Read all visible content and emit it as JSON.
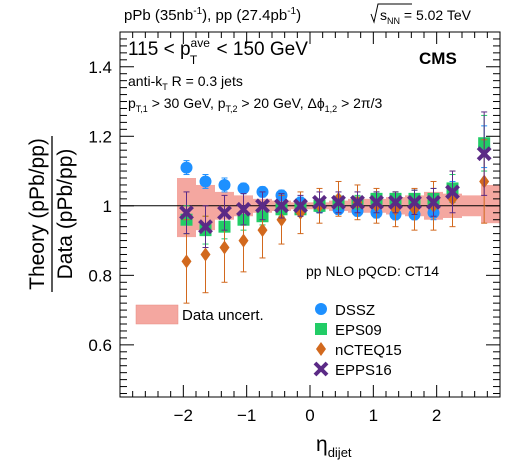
{
  "header": {
    "lumi_pPb": "pPb (35",
    "lumi_pPb_unit": "nb",
    "lumi_pPb_sup": "-1",
    "lumi_pp": "), pp (27.4",
    "lumi_pp_unit": "pb",
    "lumi_pp_sup": "-1",
    "lumi_close": ")",
    "energy_pre": "s",
    "energy_sub": "NN",
    "energy_value": " = 5.02 TeV"
  },
  "labels": {
    "cms": "CMS",
    "range_low": "115 < p",
    "range_sup": "ave",
    "range_sub": "T",
    "range_high": " < 150 GeV",
    "algo_pre": "anti-k",
    "algo_sub": "T",
    "algo_post": " R = 0.3 jets",
    "cuts_p1": "p",
    "cuts_p1_sub": "T,1",
    "cuts_p1_val": " > 30 GeV, p",
    "cuts_p2_sub": "T,2",
    "cuts_p2_val": " > 20 GeV, Δϕ",
    "cuts_phi_sub": "1,2",
    "cuts_phi_val": " > 2π/3",
    "theory_note": "pp NLO pQCD: CT14",
    "data_uncert": "Data uncert."
  },
  "chart_data": {
    "type": "scatter",
    "xlabel": "η",
    "xlabel_sub": "dijet",
    "ylabel_top": "Theory (pPb/pp)",
    "ylabel_bottom": "Data (pPb/pp)",
    "xlim": [
      -3.0,
      3.0
    ],
    "ylim": [
      0.45,
      1.5
    ],
    "x_ticks": [
      -2,
      -1,
      0,
      1,
      2
    ],
    "x_tick_labels": [
      "−2",
      "−1",
      "0",
      "1",
      "2"
    ],
    "y_ticks": [
      0.6,
      0.8,
      1.0,
      1.2,
      1.4
    ],
    "y_tick_labels": [
      "0.6",
      "0.8",
      "1",
      "1.2",
      "1.4"
    ],
    "reference_line": 1.0,
    "band_color": "#f4a7a0",
    "data_uncertainty_band": [
      {
        "x0": -2.1,
        "x1": -1.8,
        "lo": 0.91,
        "hi": 1.08
      },
      {
        "x0": -1.8,
        "x1": -1.5,
        "lo": 0.93,
        "hi": 1.06
      },
      {
        "x0": -1.5,
        "x1": -1.2,
        "lo": 0.96,
        "hi": 1.04
      },
      {
        "x0": -1.2,
        "x1": -0.9,
        "lo": 0.97,
        "hi": 1.03
      },
      {
        "x0": -0.9,
        "x1": -0.6,
        "lo": 0.98,
        "hi": 1.02
      },
      {
        "x0": -0.6,
        "x1": -0.3,
        "lo": 0.985,
        "hi": 1.015
      },
      {
        "x0": -0.3,
        "x1": 0.0,
        "lo": 0.99,
        "hi": 1.01
      },
      {
        "x0": 0.0,
        "x1": 0.3,
        "lo": 0.99,
        "hi": 1.01
      },
      {
        "x0": 0.3,
        "x1": 0.6,
        "lo": 0.985,
        "hi": 1.015
      },
      {
        "x0": 0.6,
        "x1": 0.9,
        "lo": 0.98,
        "hi": 1.02
      },
      {
        "x0": 0.9,
        "x1": 1.2,
        "lo": 0.98,
        "hi": 1.02
      },
      {
        "x0": 1.2,
        "x1": 1.5,
        "lo": 0.975,
        "hi": 1.025
      },
      {
        "x0": 1.5,
        "x1": 1.8,
        "lo": 0.97,
        "hi": 1.03
      },
      {
        "x0": 1.8,
        "x1": 2.1,
        "lo": 0.96,
        "hi": 1.04
      },
      {
        "x0": 2.1,
        "x1": 2.4,
        "lo": 0.965,
        "hi": 1.035
      },
      {
        "x0": 2.4,
        "x1": 2.7,
        "lo": 0.97,
        "hi": 1.03
      },
      {
        "x0": 2.7,
        "x1": 3.0,
        "lo": 0.95,
        "hi": 1.06
      }
    ],
    "series": [
      {
        "name": "DSSZ",
        "marker": "circle",
        "color": "#1e90ff",
        "x": [
          -1.95,
          -1.65,
          -1.35,
          -1.05,
          -0.75,
          -0.45,
          -0.15,
          0.15,
          0.45,
          0.75,
          1.05,
          1.35,
          1.65,
          1.95,
          2.25,
          2.75
        ],
        "y": [
          1.11,
          1.07,
          1.06,
          1.05,
          1.04,
          1.03,
          1.01,
          0.995,
          0.99,
          0.985,
          0.98,
          0.975,
          0.975,
          0.98,
          1.04,
          1.17
        ],
        "err": [
          0.02,
          0.02,
          0.02,
          0.015,
          0.015,
          0.015,
          0.015,
          0.015,
          0.015,
          0.015,
          0.015,
          0.015,
          0.015,
          0.02,
          0.03,
          0.06
        ]
      },
      {
        "name": "EPS09",
        "marker": "square",
        "color": "#22cc66",
        "x": [
          -1.95,
          -1.65,
          -1.35,
          -1.05,
          -0.75,
          -0.45,
          -0.15,
          0.15,
          0.45,
          0.75,
          1.05,
          1.35,
          1.65,
          1.95,
          2.25,
          2.75
        ],
        "y": [
          0.96,
          0.93,
          0.94,
          0.96,
          0.97,
          0.99,
          0.99,
          1.0,
          1.01,
          1.01,
          1.02,
          1.02,
          1.02,
          1.02,
          1.05,
          1.18
        ],
        "err": [
          0.04,
          0.04,
          0.035,
          0.03,
          0.025,
          0.02,
          0.02,
          0.02,
          0.02,
          0.02,
          0.02,
          0.02,
          0.025,
          0.03,
          0.04,
          0.08
        ]
      },
      {
        "name": "nCTEQ15",
        "marker": "diamond",
        "color": "#d2691e",
        "x": [
          -1.95,
          -1.65,
          -1.35,
          -1.05,
          -0.75,
          -0.45,
          -0.15,
          0.15,
          0.45,
          0.75,
          1.05,
          1.35,
          1.65,
          1.95,
          2.25,
          2.75
        ],
        "y": [
          0.84,
          0.86,
          0.88,
          0.9,
          0.93,
          0.96,
          0.98,
          1.0,
          1.02,
          1.01,
          1.0,
          0.99,
          0.99,
          1.0,
          1.02,
          1.07
        ],
        "err": [
          0.12,
          0.11,
          0.1,
          0.09,
          0.08,
          0.07,
          0.06,
          0.05,
          0.05,
          0.05,
          0.05,
          0.05,
          0.06,
          0.07,
          0.08,
          0.12
        ]
      },
      {
        "name": "EPPS16",
        "marker": "x",
        "color": "#5b2a86",
        "x": [
          -1.95,
          -1.65,
          -1.35,
          -1.05,
          -0.75,
          -0.45,
          -0.15,
          0.15,
          0.45,
          0.75,
          1.05,
          1.35,
          1.65,
          1.95,
          2.25,
          2.75
        ],
        "y": [
          0.98,
          0.94,
          0.98,
          0.99,
          1.0,
          1.0,
          1.0,
          1.01,
          1.01,
          1.01,
          1.01,
          1.01,
          1.01,
          1.01,
          1.04,
          1.15
        ],
        "err": [
          0.06,
          0.06,
          0.05,
          0.045,
          0.04,
          0.035,
          0.03,
          0.03,
          0.03,
          0.03,
          0.03,
          0.03,
          0.035,
          0.04,
          0.06,
          0.12
        ]
      }
    ]
  }
}
